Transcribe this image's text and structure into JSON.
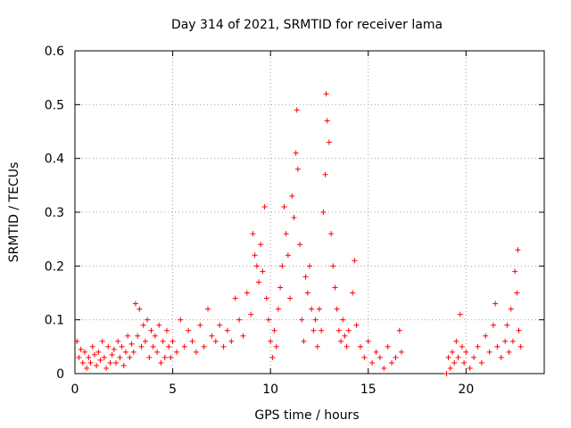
{
  "chart_data": {
    "type": "scatter",
    "title": "Day 314 of 2021, SRMTID for receiver lama",
    "xlabel": "GPS time / hours",
    "ylabel": "SRMTID / TECUs",
    "xlim": [
      0,
      24
    ],
    "ylim": [
      0,
      0.6
    ],
    "x_ticks": [
      0,
      5,
      10,
      15,
      20
    ],
    "y_ticks": [
      0,
      0.1,
      0.2,
      0.3,
      0.4,
      0.5,
      0.6
    ],
    "x_tick_labels": [
      "0",
      "5",
      "10",
      "15",
      "20"
    ],
    "y_tick_labels": [
      "0",
      "0.1",
      "0.2",
      "0.3",
      "0.4",
      "0.5",
      "0.6"
    ],
    "grid": true,
    "marker": "+",
    "color": "#ff0000",
    "series": [
      {
        "name": "SRMTID",
        "points": [
          [
            0.1,
            0.06
          ],
          [
            0.2,
            0.03
          ],
          [
            0.3,
            0.045
          ],
          [
            0.4,
            0.02
          ],
          [
            0.5,
            0.04
          ],
          [
            0.6,
            0.01
          ],
          [
            0.7,
            0.03
          ],
          [
            0.8,
            0.02
          ],
          [
            0.9,
            0.05
          ],
          [
            1.0,
            0.035
          ],
          [
            1.1,
            0.015
          ],
          [
            1.2,
            0.04
          ],
          [
            1.3,
            0.025
          ],
          [
            1.4,
            0.06
          ],
          [
            1.5,
            0.03
          ],
          [
            1.6,
            0.01
          ],
          [
            1.7,
            0.05
          ],
          [
            1.8,
            0.02
          ],
          [
            1.9,
            0.035
          ],
          [
            2.0,
            0.045
          ],
          [
            2.1,
            0.02
          ],
          [
            2.2,
            0.06
          ],
          [
            2.3,
            0.03
          ],
          [
            2.4,
            0.05
          ],
          [
            2.5,
            0.015
          ],
          [
            2.6,
            0.04
          ],
          [
            2.7,
            0.07
          ],
          [
            2.8,
            0.03
          ],
          [
            2.9,
            0.055
          ],
          [
            3.0,
            0.04
          ],
          [
            3.1,
            0.13
          ],
          [
            3.2,
            0.07
          ],
          [
            3.3,
            0.12
          ],
          [
            3.4,
            0.05
          ],
          [
            3.5,
            0.09
          ],
          [
            3.6,
            0.06
          ],
          [
            3.7,
            0.1
          ],
          [
            3.8,
            0.03
          ],
          [
            3.9,
            0.08
          ],
          [
            4.0,
            0.05
          ],
          [
            4.1,
            0.07
          ],
          [
            4.2,
            0.04
          ],
          [
            4.3,
            0.09
          ],
          [
            4.4,
            0.02
          ],
          [
            4.5,
            0.06
          ],
          [
            4.6,
            0.03
          ],
          [
            4.7,
            0.08
          ],
          [
            4.8,
            0.05
          ],
          [
            4.9,
            0.03
          ],
          [
            5.0,
            0.06
          ],
          [
            5.2,
            0.04
          ],
          [
            5.4,
            0.1
          ],
          [
            5.6,
            0.05
          ],
          [
            5.8,
            0.08
          ],
          [
            6.0,
            0.06
          ],
          [
            6.2,
            0.04
          ],
          [
            6.4,
            0.09
          ],
          [
            6.6,
            0.05
          ],
          [
            6.8,
            0.12
          ],
          [
            7.0,
            0.07
          ],
          [
            7.2,
            0.06
          ],
          [
            7.4,
            0.09
          ],
          [
            7.6,
            0.05
          ],
          [
            7.8,
            0.08
          ],
          [
            8.0,
            0.06
          ],
          [
            8.2,
            0.14
          ],
          [
            8.4,
            0.1
          ],
          [
            8.6,
            0.07
          ],
          [
            8.8,
            0.15
          ],
          [
            9.0,
            0.11
          ],
          [
            9.1,
            0.26
          ],
          [
            9.2,
            0.22
          ],
          [
            9.3,
            0.2
          ],
          [
            9.4,
            0.17
          ],
          [
            9.5,
            0.24
          ],
          [
            9.6,
            0.19
          ],
          [
            9.7,
            0.31
          ],
          [
            9.8,
            0.14
          ],
          [
            9.9,
            0.1
          ],
          [
            10.0,
            0.06
          ],
          [
            10.1,
            0.03
          ],
          [
            10.2,
            0.08
          ],
          [
            10.3,
            0.05
          ],
          [
            10.4,
            0.12
          ],
          [
            10.5,
            0.16
          ],
          [
            10.6,
            0.2
          ],
          [
            10.7,
            0.31
          ],
          [
            10.8,
            0.26
          ],
          [
            10.9,
            0.22
          ],
          [
            11.0,
            0.14
          ],
          [
            11.1,
            0.33
          ],
          [
            11.2,
            0.29
          ],
          [
            11.3,
            0.41
          ],
          [
            11.35,
            0.49
          ],
          [
            11.4,
            0.38
          ],
          [
            11.5,
            0.24
          ],
          [
            11.6,
            0.1
          ],
          [
            11.7,
            0.06
          ],
          [
            11.8,
            0.18
          ],
          [
            11.9,
            0.15
          ],
          [
            12.0,
            0.2
          ],
          [
            12.1,
            0.12
          ],
          [
            12.2,
            0.08
          ],
          [
            12.3,
            0.1
          ],
          [
            12.4,
            0.05
          ],
          [
            12.5,
            0.12
          ],
          [
            12.6,
            0.08
          ],
          [
            12.7,
            0.3
          ],
          [
            12.8,
            0.37
          ],
          [
            12.85,
            0.52
          ],
          [
            12.9,
            0.47
          ],
          [
            13.0,
            0.43
          ],
          [
            13.1,
            0.26
          ],
          [
            13.2,
            0.2
          ],
          [
            13.3,
            0.16
          ],
          [
            13.4,
            0.12
          ],
          [
            13.5,
            0.08
          ],
          [
            13.6,
            0.06
          ],
          [
            13.7,
            0.1
          ],
          [
            13.8,
            0.07
          ],
          [
            13.9,
            0.05
          ],
          [
            14.0,
            0.08
          ],
          [
            14.2,
            0.15
          ],
          [
            14.3,
            0.21
          ],
          [
            14.4,
            0.09
          ],
          [
            14.6,
            0.05
          ],
          [
            14.8,
            0.03
          ],
          [
            15.0,
            0.06
          ],
          [
            15.2,
            0.02
          ],
          [
            15.4,
            0.04
          ],
          [
            15.6,
            0.03
          ],
          [
            15.8,
            0.01
          ],
          [
            16.0,
            0.05
          ],
          [
            16.2,
            0.02
          ],
          [
            16.4,
            0.03
          ],
          [
            16.6,
            0.08
          ],
          [
            16.7,
            0.04
          ],
          [
            19.0,
            0.0
          ],
          [
            19.1,
            0.03
          ],
          [
            19.2,
            0.01
          ],
          [
            19.3,
            0.04
          ],
          [
            19.4,
            0.02
          ],
          [
            19.5,
            0.06
          ],
          [
            19.6,
            0.03
          ],
          [
            19.7,
            0.11
          ],
          [
            19.8,
            0.05
          ],
          [
            19.9,
            0.02
          ],
          [
            20.0,
            0.04
          ],
          [
            20.2,
            0.01
          ],
          [
            20.4,
            0.03
          ],
          [
            20.6,
            0.05
          ],
          [
            20.8,
            0.02
          ],
          [
            21.0,
            0.07
          ],
          [
            21.2,
            0.04
          ],
          [
            21.4,
            0.09
          ],
          [
            21.5,
            0.13
          ],
          [
            21.6,
            0.05
          ],
          [
            21.8,
            0.03
          ],
          [
            22.0,
            0.06
          ],
          [
            22.1,
            0.09
          ],
          [
            22.2,
            0.04
          ],
          [
            22.3,
            0.12
          ],
          [
            22.4,
            0.06
          ],
          [
            22.5,
            0.19
          ],
          [
            22.6,
            0.15
          ],
          [
            22.65,
            0.23
          ],
          [
            22.7,
            0.08
          ],
          [
            22.8,
            0.05
          ]
        ]
      }
    ]
  }
}
